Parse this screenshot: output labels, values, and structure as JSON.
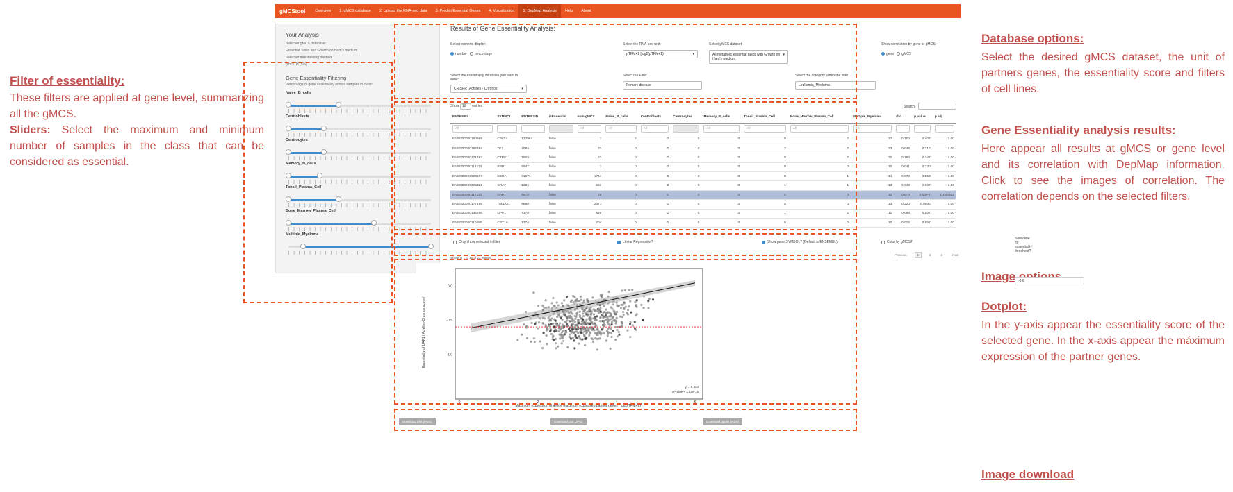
{
  "app": {
    "brand": "gMCStool",
    "nav": [
      "Overview",
      "1. gMCS database",
      "2. Upload the RNA-seq data",
      "3. Predict Essential Genes",
      "4. Visualization",
      "5. DepMap Analysis",
      "Help",
      "About"
    ],
    "active_nav": "5. DepMap Analysis"
  },
  "sidebar": {
    "title": "Your Analysis",
    "db_label": "Selected gMCS database:",
    "db_value": "Essential Tasks and Growth on Ham's medium",
    "thr_label": "Selected thresholding method:",
    "thr_value": "gmcsTH (5%)",
    "filter_title": "Gene Essentiality Filtering",
    "filter_sub": "Percentage of gene essentiality across samples in class:",
    "sliders": [
      {
        "label": "Naive_B_cells",
        "min": 0,
        "max": 100,
        "low": 0,
        "high": 0.35
      },
      {
        "label": "Centroblasts",
        "min": 0,
        "max": 100,
        "low": 0,
        "high": 0.25
      },
      {
        "label": "Centrocytes",
        "min": 0,
        "max": 100,
        "low": 0,
        "high": 0.25
      },
      {
        "label": "Memory_B_cells",
        "min": 0,
        "max": 100,
        "low": 0,
        "high": 0.22
      },
      {
        "label": "Tonsil_Plasma_Cell",
        "min": 0,
        "max": 100,
        "low": 0,
        "high": 0.35
      },
      {
        "label": "Bone_Marrow_Plasma_Cell",
        "min": 0,
        "max": 100,
        "low": 0,
        "high": 0.6
      },
      {
        "label": "Multiple_Myeloma",
        "min": 0,
        "max": 100,
        "low": 0.1,
        "high": 1.0
      }
    ]
  },
  "main": {
    "title": "Results of Gene Essentiality Analysis:",
    "numeric_display_label": "Select numeric display:",
    "numeric_options": [
      "number",
      "percentage"
    ],
    "rnaseq_label": "Select the RNA-seq unit:",
    "rnaseq_value": "pTPM+1 [log2(pTPM+1)]",
    "gmcs_label": "Select gMCS dataset:",
    "gmcs_value": "All metabolic essential tasks with Growth on Ham's medium",
    "corr_label": "Show correlation by gene or gMCS:",
    "corr_options": [
      "gene",
      "gMCS"
    ],
    "ess_db_label": "Select the essentiality database you want to select",
    "ess_db_value": "CRISPR (Achilles - Chronos)",
    "filter_label": "Select the Filter",
    "filter_value": "Primary disease",
    "category_label": "Select the category within the filter",
    "category_value": "Leukemia_Myeloma",
    "show_label": "Show",
    "show_value": "10",
    "entries_label": "entries",
    "search_label": "Search:",
    "columns": [
      "ENSEMBL",
      "SYMBOL",
      "ENTREZID",
      "isEssential",
      "num.gMCS",
      "Naive_B_cells",
      "Centroblasts",
      "Centrocytes",
      "Memory_B_cells",
      "Tonsil_Plasma_Cell",
      "Bone_Marrow_Plasma_Cell",
      "Multiple_Myeloma",
      "rho",
      "p.value",
      "p.adj"
    ],
    "filter_placeholders": [
      "All",
      "",
      "",
      "",
      "All",
      "All",
      "All",
      "",
      "All",
      "All",
      "All",
      "All",
      "",
      "",
      ""
    ],
    "rows": [
      [
        "ENSG00000150969",
        "CPAT4",
        "137964",
        "false",
        "3",
        "2",
        "0",
        "0",
        "0",
        "0",
        "2",
        "27",
        "-0.100",
        "0.407",
        "1.00"
      ],
      [
        "ENSG00000166393",
        "TK2",
        "7084",
        "false",
        "33",
        "0",
        "0",
        "0",
        "0",
        "2",
        "2",
        "23",
        "0.046",
        "0.712",
        "1.00"
      ],
      [
        "ENSG00000171793",
        "CTPS1",
        "1503",
        "false",
        "23",
        "0",
        "0",
        "0",
        "0",
        "0",
        "2",
        "22",
        "0.180",
        "0.147",
        "1.00"
      ],
      [
        "ENSG00000114113",
        "RBP1",
        "5947",
        "false",
        "1",
        "0",
        "0",
        "0",
        "0",
        "0",
        "0",
        "10",
        "0.041",
        "0.730",
        "1.00"
      ],
      [
        "ENSG00000023697",
        "DERA",
        "51071",
        "false",
        "1744",
        "0",
        "0",
        "0",
        "0",
        "0",
        "1",
        "14",
        "0.073",
        "0.553",
        "1.00"
      ],
      [
        "ENSG00000095321",
        "CRAT",
        "1384",
        "false",
        "563",
        "0",
        "0",
        "0",
        "0",
        "1",
        "1",
        "13",
        "0.049",
        "0.697",
        "1.00"
      ],
      [
        "ENSG00000117143",
        "UAP1",
        "6675",
        "false",
        "29",
        "0",
        "0",
        "0",
        "0",
        "0",
        "0",
        "12",
        "0.570",
        "4.63e-7",
        "0.000402"
      ],
      [
        "ENSG00000177156",
        "TALDO1",
        "6888",
        "false",
        "2371",
        "0",
        "0",
        "0",
        "0",
        "0",
        "0",
        "13",
        "-0.220",
        "0.0680",
        "1.00"
      ],
      [
        "ENSG00000135696",
        "UPP1",
        "7378",
        "false",
        "846",
        "0",
        "0",
        "0",
        "0",
        "1",
        "2",
        "11",
        "0.064",
        "0.607",
        "1.00"
      ],
      [
        "ENSG00000110090",
        "CPT1A",
        "1374",
        "false",
        "204",
        "0",
        "0",
        "0",
        "0",
        "0",
        "0",
        "10",
        "-0.022",
        "0.857",
        "1.00"
      ]
    ],
    "showing": "Showing 1 to 10 of 23 entries",
    "pager": [
      "Previous",
      "1",
      "2",
      "3",
      "Next"
    ],
    "opts": [
      "Only show selected in filter",
      "Linear Regression?",
      "Show gene SYMBOL? (Default is ENSEMBL)",
      "Color by gMCS?"
    ],
    "threshold_label": "Show line for essentiality threshold?",
    "threshold_value": "-0.6",
    "plot": {
      "ylabel": "Essentiality of UAP1 | Achilles-Chronos score |",
      "xlabel": "Maximum expression of all the maximum expressed partner genes | log2(TPM+1) |",
      "rho": "ρ = 0.434",
      "pval": "p-value < 2.22e-15",
      "yticks": [
        "0.0",
        "-0.5",
        "-1.0"
      ],
      "xticks": [
        "0",
        "2",
        "4",
        "6"
      ]
    },
    "downloads": [
      "Download plot (PNG)",
      "Download plot (JPG)",
      "Download ggplot (RDS)"
    ]
  },
  "annotations": {
    "left_title": "Filter of essentiality:",
    "left_text": "These filters are applied at gene level, summarizing all the gMCS.",
    "left_sliders_bold": "Sliders:",
    "left_sliders_text": "Select the maximum and minimum number of samples in the class that can be considered as essential.",
    "db_title": "Database options:",
    "db_text": "Select the desired gMCS dataset, the unit of partners genes, the essentiality score and filters of cell lines.",
    "res_title": "Gene Essentiality analysis results:",
    "res_text": "Here appear all results at gMCS or gene level and its correlation with DepMap information. Click to see the images of correlation. The correlation depends on the selected filters.",
    "img_title": "Image options",
    "dot_title": "Dotplot:",
    "dot_text": "In the y-axis appear the essentiality score of the selected gene. In the x-axis appear the máximum expression of the partner genes.",
    "dl_title": "Image download"
  }
}
